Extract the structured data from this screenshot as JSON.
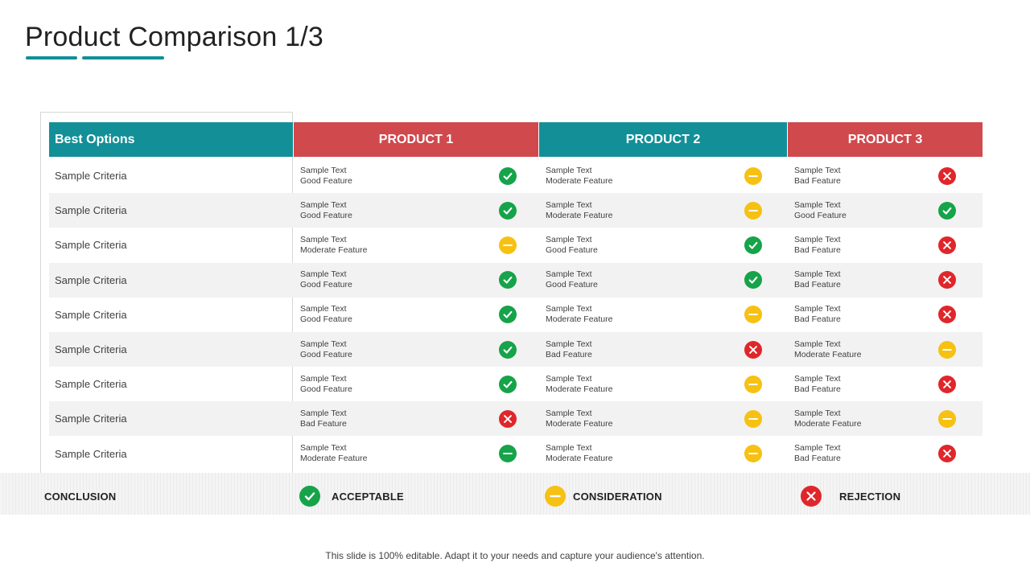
{
  "slide": {
    "title": "Product Comparison 1/3",
    "footer": "This slide is 100% editable. Adapt it to your needs and capture your audience's attention."
  },
  "table": {
    "headers": {
      "best_options": "Best Options",
      "product1": "PRODUCT 1",
      "product2": "PRODUCT 2",
      "product3": "PRODUCT 3"
    },
    "rows": [
      {
        "criteria": "Sample Criteria",
        "p1": {
          "line1": "Sample Text",
          "line2": "Good Feature",
          "status": "good"
        },
        "p2": {
          "line1": "Sample Text",
          "line2": "Moderate Feature",
          "status": "moderate"
        },
        "p3": {
          "line1": "Sample Text",
          "line2": "Bad Feature",
          "status": "bad"
        }
      },
      {
        "criteria": "Sample Criteria",
        "p1": {
          "line1": "Sample Text",
          "line2": "Good Feature",
          "status": "good"
        },
        "p2": {
          "line1": "Sample Text",
          "line2": "Moderate Feature",
          "status": "moderate"
        },
        "p3": {
          "line1": "Sample Text",
          "line2": "Good Feature",
          "status": "good"
        }
      },
      {
        "criteria": "Sample Criteria",
        "p1": {
          "line1": "Sample Text",
          "line2": "Moderate Feature",
          "status": "moderate"
        },
        "p2": {
          "line1": "Sample Text",
          "line2": "Good Feature",
          "status": "good"
        },
        "p3": {
          "line1": "Sample Text",
          "line2": "Bad Feature",
          "status": "bad"
        }
      },
      {
        "criteria": "Sample Criteria",
        "p1": {
          "line1": "Sample Text",
          "line2": "Good Feature",
          "status": "good"
        },
        "p2": {
          "line1": "Sample Text",
          "line2": "Good Feature",
          "status": "good"
        },
        "p3": {
          "line1": "Sample Text",
          "line2": "Bad Feature",
          "status": "bad"
        }
      },
      {
        "criteria": "Sample Criteria",
        "p1": {
          "line1": "Sample Text",
          "line2": "Good Feature",
          "status": "good"
        },
        "p2": {
          "line1": "Sample Text",
          "line2": "Moderate Feature",
          "status": "moderate"
        },
        "p3": {
          "line1": "Sample Text",
          "line2": "Bad Feature",
          "status": "bad"
        }
      },
      {
        "criteria": "Sample Criteria",
        "p1": {
          "line1": "Sample Text",
          "line2": "Good Feature",
          "status": "good"
        },
        "p2": {
          "line1": "Sample Text",
          "line2": "Bad Feature",
          "status": "bad"
        },
        "p3": {
          "line1": "Sample Text",
          "line2": "Moderate Feature",
          "status": "moderate"
        }
      },
      {
        "criteria": "Sample Criteria",
        "p1": {
          "line1": "Sample Text",
          "line2": "Good Feature",
          "status": "good"
        },
        "p2": {
          "line1": "Sample Text",
          "line2": "Moderate Feature",
          "status": "moderate"
        },
        "p3": {
          "line1": "Sample Text",
          "line2": "Bad Feature",
          "status": "bad"
        }
      },
      {
        "criteria": "Sample Criteria",
        "p1": {
          "line1": "Sample Text",
          "line2": "Bad Feature",
          "status": "bad"
        },
        "p2": {
          "line1": "Sample Text",
          "line2": "Moderate Feature",
          "status": "moderate"
        },
        "p3": {
          "line1": "Sample Text",
          "line2": "Moderate Feature",
          "status": "moderate"
        }
      },
      {
        "criteria": "Sample Criteria",
        "p1": {
          "line1": "Sample Text",
          "line2": "Moderate Feature",
          "status": "good-minus"
        },
        "p2": {
          "line1": "Sample Text",
          "line2": "Moderate Feature",
          "status": "moderate"
        },
        "p3": {
          "line1": "Sample Text",
          "line2": "Bad Feature",
          "status": "bad"
        }
      }
    ]
  },
  "conclusion": {
    "label": "CONCLUSION",
    "acceptable": "ACCEPTABLE",
    "consideration": "CONSIDERATION",
    "rejection": "REJECTION"
  },
  "colors": {
    "teal": "#138f97",
    "red_header": "#d0494d",
    "good": "#16a34a",
    "moderate": "#f6c112",
    "bad": "#e0262b"
  },
  "icons": {
    "good": "check-circle-icon",
    "moderate": "minus-circle-icon",
    "bad": "x-circle-icon"
  }
}
